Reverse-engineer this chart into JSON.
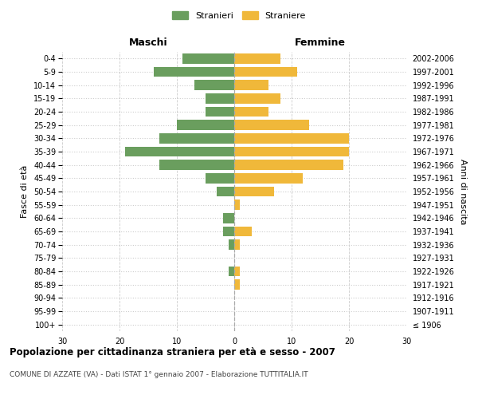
{
  "age_groups": [
    "100+",
    "95-99",
    "90-94",
    "85-89",
    "80-84",
    "75-79",
    "70-74",
    "65-69",
    "60-64",
    "55-59",
    "50-54",
    "45-49",
    "40-44",
    "35-39",
    "30-34",
    "25-29",
    "20-24",
    "15-19",
    "10-14",
    "5-9",
    "0-4"
  ],
  "birth_years": [
    "≤ 1906",
    "1907-1911",
    "1912-1916",
    "1917-1921",
    "1922-1926",
    "1927-1931",
    "1932-1936",
    "1937-1941",
    "1942-1946",
    "1947-1951",
    "1952-1956",
    "1957-1961",
    "1962-1966",
    "1967-1971",
    "1972-1976",
    "1977-1981",
    "1982-1986",
    "1987-1991",
    "1992-1996",
    "1997-2001",
    "2002-2006"
  ],
  "males": [
    0,
    0,
    0,
    0,
    1,
    0,
    1,
    2,
    2,
    0,
    3,
    5,
    13,
    19,
    13,
    10,
    5,
    5,
    7,
    14,
    9
  ],
  "females": [
    0,
    0,
    0,
    1,
    1,
    0,
    1,
    3,
    0,
    1,
    7,
    12,
    19,
    20,
    20,
    13,
    6,
    8,
    6,
    11,
    8
  ],
  "male_color": "#6a9e5e",
  "female_color": "#f0b83a",
  "xlim": 30,
  "title": "Popolazione per cittadinanza straniera per età e sesso - 2007",
  "subtitle": "COMUNE DI AZZATE (VA) - Dati ISTAT 1° gennaio 2007 - Elaborazione TUTTITALIA.IT",
  "xlabel_left": "Maschi",
  "xlabel_right": "Femmine",
  "ylabel_left": "Fasce di età",
  "ylabel_right": "Anni di nascita",
  "legend_males": "Stranieri",
  "legend_females": "Straniere",
  "grid_color": "#cccccc",
  "background_color": "#ffffff"
}
